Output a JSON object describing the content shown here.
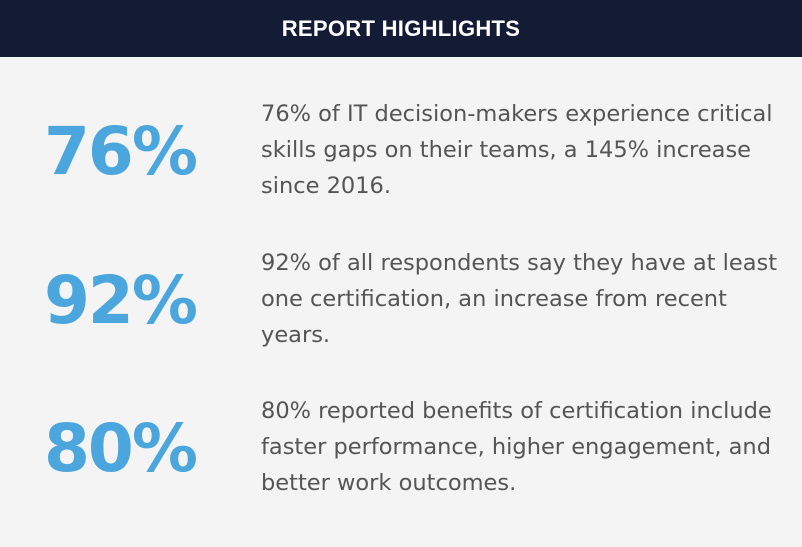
{
  "header": {
    "title": "REPORT HIGHLIGHTS"
  },
  "highlights": [
    {
      "stat": "76%",
      "text": "76% of IT decision-makers experience critical skills gaps on their teams, a 145% increase since 2016."
    },
    {
      "stat": "92%",
      "text": "92% of all respondents say they have at least one certification, an increase from recent years."
    },
    {
      "stat": "80%",
      "text": "80% reported benefits of certification include faster performance, higher engagement, and better work outcomes."
    }
  ],
  "colors": {
    "header_bg": "#141b35",
    "accent": "#4aa6dd"
  }
}
